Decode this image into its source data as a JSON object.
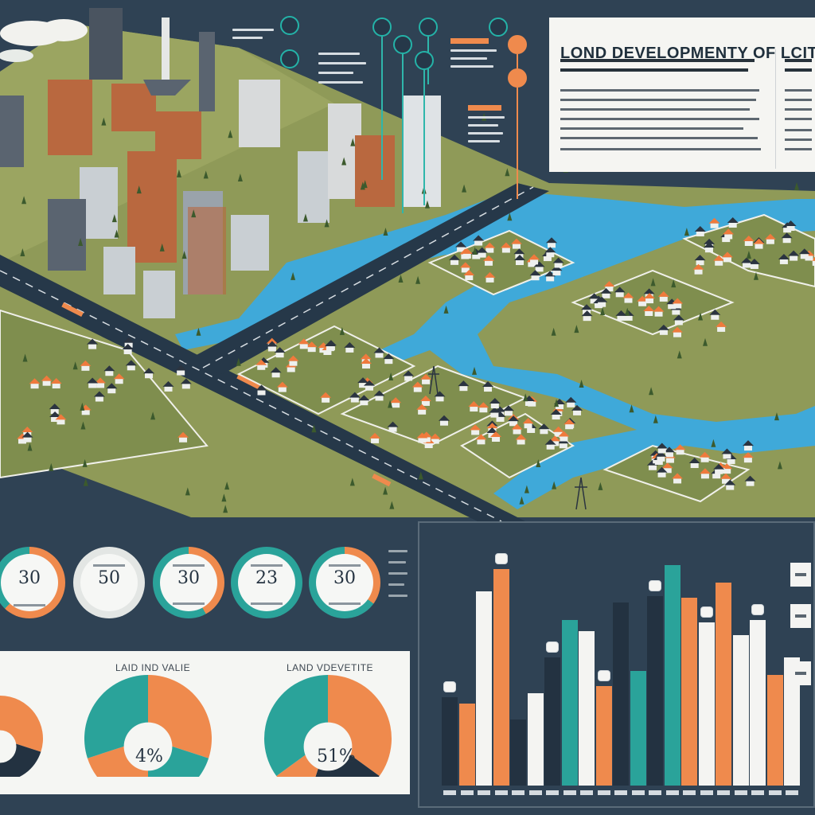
{
  "header": {
    "title": "LOND DEVELOPMENTY OF LCITY"
  },
  "callouts": [
    {
      "icon": "info-pin-icon",
      "style": "teal"
    },
    {
      "icon": "info-pin-icon",
      "style": "teal"
    },
    {
      "icon": "info-pin-icon",
      "style": "teal"
    },
    {
      "icon": "info-pin-icon",
      "style": "teal"
    },
    {
      "icon": "info-pin-icon",
      "style": "orange"
    }
  ],
  "gauges": [
    {
      "value": "30",
      "percent": 62,
      "color": "#ef8a4d"
    },
    {
      "value": "50",
      "percent": 0,
      "color": "#ef8a4d"
    },
    {
      "value": "30",
      "percent": 42,
      "color": "#ef8a4d"
    },
    {
      "value": "23",
      "percent": 78,
      "color": "#2aa39a"
    },
    {
      "value": "30",
      "percent": 35,
      "color": "#ef8a4d"
    }
  ],
  "pies": [
    {
      "label": "",
      "pct": "",
      "slices": [
        {
          "value": 30,
          "color": "#ef8a4d"
        },
        {
          "value": 40,
          "color": "#233241"
        },
        {
          "value": 30,
          "color": "#2aa39a"
        }
      ]
    },
    {
      "label": "LAID IND VALIE",
      "pct": "4%",
      "slices": [
        {
          "value": 30,
          "color": "#ef8a4d"
        },
        {
          "value": 20,
          "color": "#2aa39a"
        },
        {
          "value": 20,
          "color": "#ef8a4d"
        },
        {
          "value": 30,
          "color": "#2aa39a"
        }
      ]
    },
    {
      "label": "LAND VDEVETITE",
      "pct": "51%",
      "slices": [
        {
          "value": 35,
          "color": "#ef8a4d"
        },
        {
          "value": 20,
          "color": "#233241"
        },
        {
          "value": 10,
          "color": "#ef8a4d"
        },
        {
          "value": 35,
          "color": "#2aa39a"
        }
      ]
    }
  ],
  "chart_data": {
    "type": "bar",
    "values": [
      40,
      37,
      88,
      98,
      30,
      42,
      58,
      75,
      70,
      45,
      83,
      52,
      86,
      100,
      85,
      74,
      92,
      68,
      75,
      50,
      58
    ],
    "colors": [
      "#233241",
      "#ef8a4d",
      "#f4f4f2",
      "#ef8a4d",
      "#233241",
      "#f4f4f2",
      "#233241",
      "#2aa39a",
      "#f4f4f2",
      "#ef8a4d",
      "#233241",
      "#2aa39a",
      "#233241",
      "#2aa39a",
      "#ef8a4d",
      "#f4f4f2",
      "#ef8a4d",
      "#f4f4f2",
      "#f4f4f2",
      "#ef8a4d",
      "#f4f4f2"
    ],
    "ylim": [
      0,
      110
    ]
  },
  "colors": {
    "background": "#2f4254",
    "teal": "#2aa39a",
    "orange": "#ef8a4d",
    "navy": "#233241",
    "panel": "#f5f6f3",
    "water": "#3fa9d9",
    "grass": "#8a9a55"
  }
}
